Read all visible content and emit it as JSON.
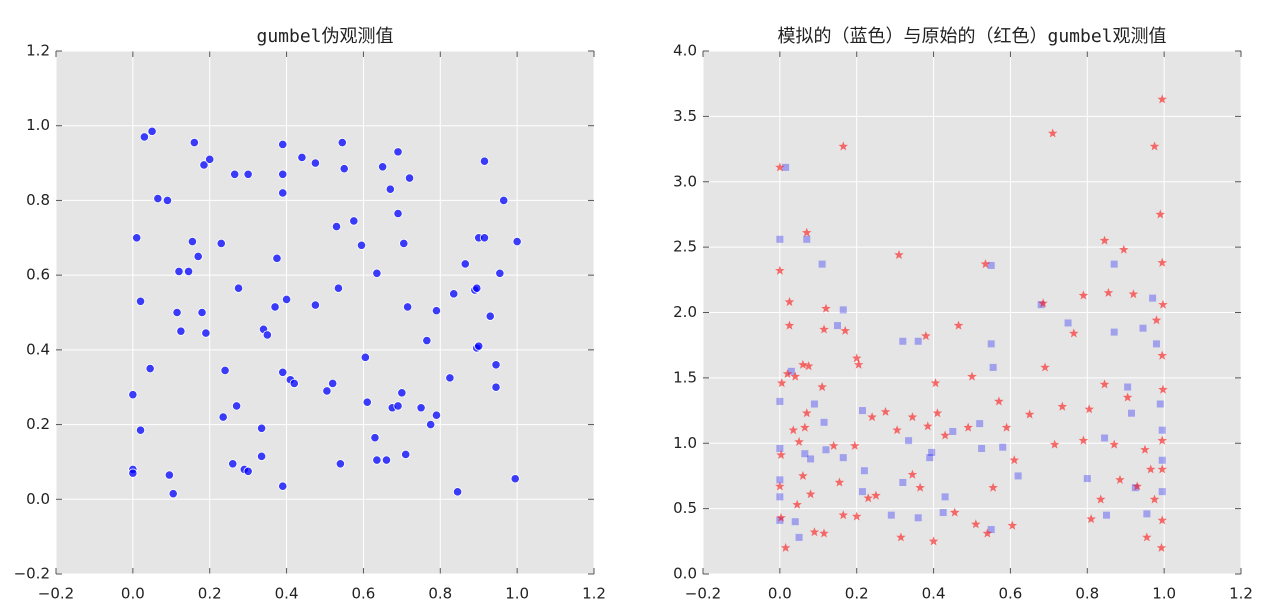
{
  "chart_data": [
    {
      "type": "scatter",
      "title": "gumbel伪观测值",
      "grid": true,
      "xlim": [
        -0.2,
        1.2
      ],
      "ylim": [
        -0.2,
        1.2
      ],
      "xticks": [
        {
          "value": -0.2,
          "label": "−0.2"
        },
        {
          "value": 0,
          "label": "0.0"
        },
        {
          "value": 0.2,
          "label": "0.2"
        },
        {
          "value": 0.4,
          "label": "0.4"
        },
        {
          "value": 0.6,
          "label": "0.6"
        },
        {
          "value": 0.8,
          "label": "0.8"
        },
        {
          "value": 1,
          "label": "1.0"
        },
        {
          "value": 1.2,
          "label": "1.2"
        }
      ],
      "yticks": [
        {
          "value": -0.2,
          "label": "−0.2"
        },
        {
          "value": 0,
          "label": "0.0"
        },
        {
          "value": 0.2,
          "label": "0.2"
        },
        {
          "value": 0.4,
          "label": "0.4"
        },
        {
          "value": 0.6,
          "label": "0.6"
        },
        {
          "value": 0.8,
          "label": "0.8"
        },
        {
          "value": 1,
          "label": "1.0"
        },
        {
          "value": 1.2,
          "label": "1.2"
        }
      ],
      "series": [
        {
          "color": "#0000ff",
          "marker": "circle",
          "opacity": 0.75,
          "x": [
            0.0,
            0.0,
            0.0,
            0.01,
            0.02,
            0.02,
            0.03,
            0.05,
            0.045,
            0.065,
            0.09,
            0.095,
            0.105,
            0.115,
            0.12,
            0.125,
            0.145,
            0.155,
            0.16,
            0.17,
            0.18,
            0.185,
            0.19,
            0.2,
            0.23,
            0.235,
            0.24,
            0.26,
            0.265,
            0.27,
            0.275,
            0.29,
            0.3,
            0.3,
            0.335,
            0.335,
            0.34,
            0.35,
            0.37,
            0.375,
            0.39,
            0.39,
            0.39,
            0.39,
            0.39,
            0.4,
            0.41,
            0.42,
            0.44,
            0.475,
            0.475,
            0.505,
            0.52,
            0.53,
            0.535,
            0.54,
            0.545,
            0.55,
            0.575,
            0.595,
            0.605,
            0.61,
            0.63,
            0.635,
            0.635,
            0.65,
            0.66,
            0.67,
            0.675,
            0.69,
            0.69,
            0.69,
            0.7,
            0.705,
            0.71,
            0.715,
            0.72,
            0.75,
            0.765,
            0.775,
            0.79,
            0.79,
            0.825,
            0.835,
            0.845,
            0.865,
            0.89,
            0.895,
            0.895,
            0.9,
            0.9,
            0.915,
            0.915,
            0.93,
            0.945,
            0.945,
            0.955,
            0.965,
            1.0,
            0.995
          ],
          "y": [
            0.28,
            0.08,
            0.07,
            0.7,
            0.53,
            0.185,
            0.97,
            0.985,
            0.35,
            0.805,
            0.8,
            0.065,
            0.015,
            0.5,
            0.61,
            0.45,
            0.61,
            0.69,
            0.955,
            0.65,
            0.5,
            0.895,
            0.445,
            0.91,
            0.685,
            0.22,
            0.345,
            0.095,
            0.87,
            0.25,
            0.565,
            0.08,
            0.87,
            0.075,
            0.19,
            0.115,
            0.455,
            0.44,
            0.515,
            0.645,
            0.95,
            0.87,
            0.82,
            0.34,
            0.035,
            0.535,
            0.32,
            0.31,
            0.915,
            0.9,
            0.52,
            0.29,
            0.31,
            0.73,
            0.565,
            0.095,
            0.955,
            0.885,
            0.745,
            0.68,
            0.38,
            0.26,
            0.165,
            0.105,
            0.605,
            0.89,
            0.105,
            0.83,
            0.245,
            0.93,
            0.25,
            0.765,
            0.285,
            0.685,
            0.12,
            0.515,
            0.86,
            0.245,
            0.425,
            0.2,
            0.225,
            0.505,
            0.325,
            0.55,
            0.02,
            0.63,
            0.56,
            0.565,
            0.405,
            0.41,
            0.7,
            0.7,
            0.905,
            0.49,
            0.36,
            0.3,
            0.605,
            0.8,
            0.69,
            0.055
          ]
        }
      ]
    },
    {
      "type": "scatter",
      "title": "模拟的（蓝色）与原始的（红色）gumbel观测值",
      "grid": true,
      "xlim": [
        -0.2,
        1.2
      ],
      "ylim": [
        0,
        4
      ],
      "xticks": [
        {
          "value": -0.2,
          "label": "−0.2"
        },
        {
          "value": 0,
          "label": "0.0"
        },
        {
          "value": 0.2,
          "label": "0.2"
        },
        {
          "value": 0.4,
          "label": "0.4"
        },
        {
          "value": 0.6,
          "label": "0.6"
        },
        {
          "value": 0.8,
          "label": "0.8"
        },
        {
          "value": 1,
          "label": "1.0"
        },
        {
          "value": 1.2,
          "label": "1.2"
        }
      ],
      "yticks": [
        {
          "value": 0,
          "label": "0.0"
        },
        0.5,
        {
          "value": 1,
          "label": "1.0"
        },
        1.5,
        {
          "value": 2,
          "label": "2.0"
        },
        2.5,
        {
          "value": 3,
          "label": "3.0"
        },
        3.5,
        {
          "value": 4,
          "label": "4.0"
        }
      ],
      "series": [
        {
          "color": "#0000ff",
          "marker": "square",
          "opacity": 0.3,
          "x": [
            0.0,
            0.0,
            0.0,
            0.0,
            0.0,
            0.0,
            0.015,
            0.03,
            0.04,
            0.05,
            0.07,
            0.065,
            0.08,
            0.09,
            0.11,
            0.115,
            0.12,
            0.15,
            0.165,
            0.165,
            0.215,
            0.22,
            0.215,
            0.29,
            0.32,
            0.32,
            0.335,
            0.36,
            0.36,
            0.39,
            0.395,
            0.43,
            0.425,
            0.45,
            0.52,
            0.525,
            0.55,
            0.55,
            0.555,
            0.55,
            0.58,
            0.62,
            0.68,
            0.75,
            0.8,
            0.845,
            0.85,
            0.87,
            0.87,
            0.905,
            0.915,
            0.925,
            0.945,
            0.955,
            0.97,
            0.98,
            0.99,
            0.995,
            0.995,
            0.995
          ],
          "y": [
            2.56,
            1.32,
            0.96,
            0.72,
            0.59,
            0.41,
            3.11,
            1.55,
            0.4,
            0.28,
            2.56,
            0.92,
            0.88,
            1.3,
            2.37,
            1.16,
            0.95,
            1.9,
            2.02,
            0.89,
            1.25,
            0.79,
            0.63,
            0.45,
            1.78,
            0.7,
            1.02,
            1.78,
            0.43,
            0.89,
            0.93,
            0.59,
            0.47,
            1.09,
            1.15,
            0.96,
            2.36,
            1.76,
            1.58,
            0.34,
            0.97,
            0.75,
            2.06,
            1.92,
            0.73,
            1.04,
            0.45,
            2.37,
            1.85,
            1.43,
            1.23,
            0.66,
            1.88,
            0.46,
            2.11,
            1.76,
            1.3,
            1.1,
            0.87,
            0.63
          ]
        },
        {
          "color": "#ff0000",
          "marker": "star",
          "opacity": 0.55,
          "x": [
            0.0,
            0.0,
            0.005,
            0.003,
            0.0,
            0.003,
            0.015,
            0.025,
            0.025,
            0.02,
            0.04,
            0.035,
            0.05,
            0.06,
            0.045,
            0.07,
            0.06,
            0.075,
            0.07,
            0.065,
            0.08,
            0.09,
            0.11,
            0.12,
            0.115,
            0.115,
            0.14,
            0.155,
            0.165,
            0.165,
            0.17,
            0.2,
            0.205,
            0.195,
            0.2,
            0.23,
            0.24,
            0.25,
            0.275,
            0.305,
            0.31,
            0.315,
            0.345,
            0.345,
            0.365,
            0.38,
            0.385,
            0.4,
            0.405,
            0.41,
            0.43,
            0.455,
            0.465,
            0.49,
            0.5,
            0.51,
            0.535,
            0.54,
            0.555,
            0.57,
            0.59,
            0.61,
            0.605,
            0.65,
            0.685,
            0.69,
            0.71,
            0.715,
            0.735,
            0.765,
            0.79,
            0.79,
            0.805,
            0.81,
            0.845,
            0.855,
            0.845,
            0.87,
            0.895,
            0.905,
            0.92,
            0.93,
            0.955,
            0.975,
            0.98,
            0.99,
            0.995,
            0.995,
            0.997,
            0.995,
            0.997,
            0.995,
            0.995,
            0.995,
            0.993,
            0.965,
            0.95,
            0.975,
            0.885,
            0.835
          ],
          "y": [
            3.11,
            2.32,
            1.46,
            0.91,
            0.67,
            0.43,
            0.2,
            2.08,
            1.9,
            1.53,
            1.51,
            1.1,
            1.01,
            0.75,
            0.53,
            2.61,
            1.6,
            1.59,
            1.23,
            1.12,
            0.61,
            0.32,
            1.43,
            2.03,
            1.87,
            0.31,
            0.98,
            0.7,
            3.27,
            0.45,
            1.86,
            1.65,
            1.6,
            0.98,
            0.44,
            0.58,
            1.2,
            0.6,
            1.24,
            1.1,
            2.44,
            0.28,
            1.2,
            0.76,
            0.66,
            1.82,
            1.13,
            0.25,
            1.46,
            1.23,
            1.06,
            0.47,
            1.9,
            1.12,
            1.51,
            0.38,
            2.37,
            0.31,
            0.66,
            1.32,
            1.12,
            0.87,
            0.37,
            1.22,
            2.07,
            1.58,
            3.37,
            0.99,
            1.28,
            1.84,
            2.13,
            1.02,
            1.26,
            0.42,
            2.55,
            2.15,
            1.45,
            0.99,
            2.48,
            1.35,
            2.14,
            0.67,
            0.28,
            3.27,
            1.94,
            2.75,
            3.63,
            2.38,
            2.06,
            1.67,
            1.41,
            1.02,
            0.8,
            0.41,
            0.2,
            0.8,
            0.95,
            0.57,
            0.72,
            0.57
          ]
        }
      ]
    }
  ]
}
